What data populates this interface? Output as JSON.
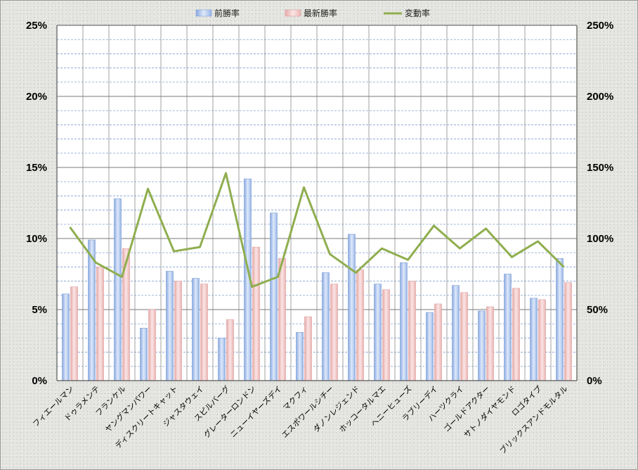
{
  "chart_data": {
    "type": "bar",
    "categories": [
      "フィエールマン",
      "ドゥラメンテ",
      "フランケル",
      "ヤングマンパワー",
      "ディスクリートキャット",
      "ジャスタウェイ",
      "スピルバーグ",
      "グレーターロンドン",
      "ニューイヤーズデイ",
      "マクフィ",
      "エスポワールシチー",
      "ダノンレジェンド",
      "ホッコータルマエ",
      "ヘニーヒューズ",
      "ラブリーデイ",
      "ハーツクライ",
      "ゴールドアクター",
      "サトノダイヤモンド",
      "ロゴタイプ",
      "ブリックスアンドモルタル"
    ],
    "series": [
      {
        "name": "前勝率",
        "type": "bar",
        "axis": "left",
        "color": "#a9c3ec",
        "values": [
          6.1,
          9.9,
          12.8,
          3.7,
          7.7,
          7.2,
          3.0,
          14.2,
          11.8,
          3.4,
          7.6,
          10.3,
          6.8,
          8.3,
          4.8,
          6.7,
          4.9,
          7.5,
          5.8,
          8.6
        ]
      },
      {
        "name": "最新勝率",
        "type": "bar",
        "axis": "left",
        "color": "#f0c6c6",
        "values": [
          6.6,
          8.0,
          9.3,
          5.0,
          7.0,
          6.8,
          4.3,
          9.4,
          8.6,
          4.5,
          6.8,
          7.8,
          6.4,
          7.0,
          5.4,
          6.2,
          5.2,
          6.5,
          5.7,
          6.9
        ]
      },
      {
        "name": "変動率",
        "type": "line",
        "axis": "right",
        "color": "#8fae4f",
        "values": [
          108,
          83,
          73,
          135,
          91,
          94,
          146,
          66,
          73,
          136,
          89,
          76,
          93,
          85,
          109,
          93,
          107,
          87,
          98,
          80
        ]
      }
    ],
    "y_left": {
      "min": 0,
      "max": 25,
      "ticks": [
        "0%",
        "5%",
        "10%",
        "15%",
        "20%",
        "25%"
      ]
    },
    "y_right": {
      "min": 0,
      "max": 250,
      "ticks": [
        "0%",
        "50%",
        "100%",
        "150%",
        "200%",
        "250%"
      ]
    },
    "legend_position": "top-center",
    "grid": true
  }
}
